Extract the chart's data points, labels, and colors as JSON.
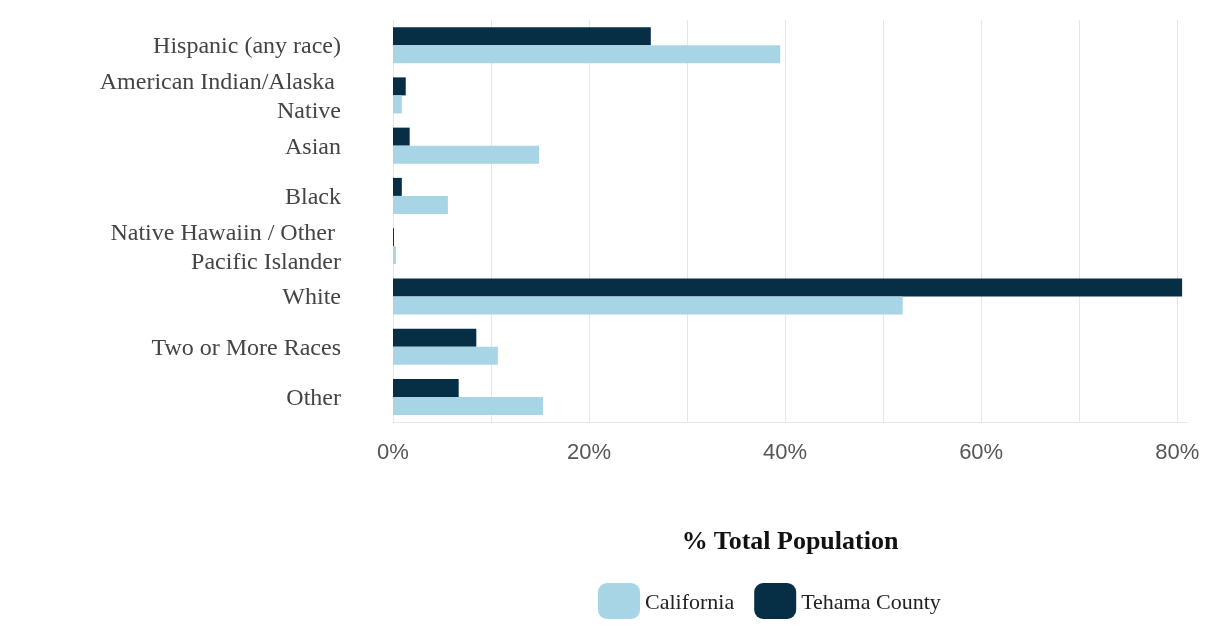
{
  "chart_data": {
    "type": "bar",
    "orientation": "horizontal",
    "xlabel": "% Total Population",
    "categories": [
      "Hispanic (any race)",
      "American Indian/Alaska Native",
      "Asian",
      "Black",
      "Native Hawaiin / Other Pacific Islander",
      "White",
      "Two or More Races",
      "Other"
    ],
    "series": [
      {
        "name": "California",
        "color": "#a8d5e5",
        "values": [
          39.5,
          0.9,
          14.9,
          5.6,
          0.3,
          52.0,
          10.7,
          15.3
        ]
      },
      {
        "name": "Tehama County",
        "color": "#062f45",
        "values": [
          26.3,
          1.3,
          1.7,
          0.9,
          0.1,
          80.5,
          8.5,
          6.7
        ]
      }
    ],
    "xlim": [
      0,
      81
    ],
    "xticks": [
      {
        "value": 0,
        "label": "0%"
      },
      {
        "value": 10,
        "label": null
      },
      {
        "value": 20,
        "label": "20%"
      },
      {
        "value": 30,
        "label": null
      },
      {
        "value": 40,
        "label": "40%"
      },
      {
        "value": 50,
        "label": null
      },
      {
        "value": 60,
        "label": "60%"
      },
      {
        "value": 70,
        "label": null
      },
      {
        "value": 80,
        "label": "80%"
      }
    ],
    "grid": "x",
    "legend": "bottom"
  }
}
